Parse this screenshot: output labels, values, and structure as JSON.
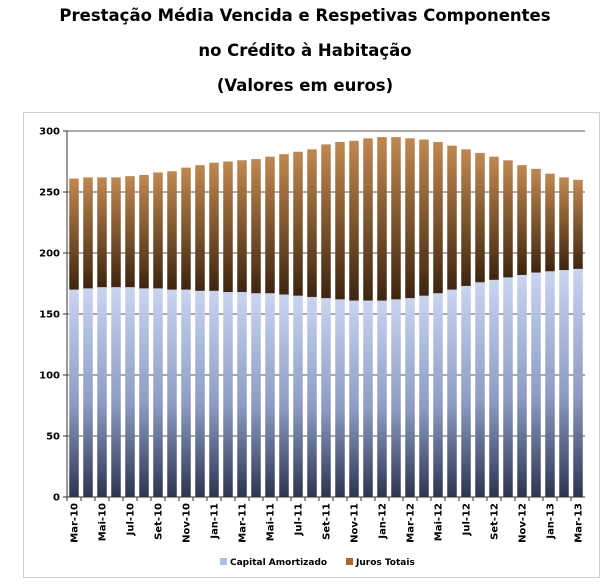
{
  "chart_data": {
    "type": "bar",
    "stacked": true,
    "title_lines": [
      "Prestação Média Vencida e Respetivas Componentes",
      "no Crédito à Habitação",
      "(Valores em euros)"
    ],
    "xlabel": "",
    "ylabel": "",
    "ylim": [
      0,
      300
    ],
    "yticks": [
      0,
      50,
      100,
      150,
      200,
      250,
      300
    ],
    "grid": true,
    "legend_position": "bottom-center",
    "categories": [
      "Mar-10",
      "Apr-10",
      "Mai-10",
      "Jun-10",
      "Jul-10",
      "Ago-10",
      "Set-10",
      "Out-10",
      "Nov-10",
      "Dez-10",
      "Jan-11",
      "Fev-11",
      "Mar-11",
      "Apr-11",
      "Mai-11",
      "Jun-11",
      "Jul-11",
      "Ago-11",
      "Set-11",
      "Out-11",
      "Nov-11",
      "Dez-11",
      "Jan-12",
      "Fev-12",
      "Mar-12",
      "Apr-12",
      "Mai-12",
      "Jun-12",
      "Jul-12",
      "Ago-12",
      "Set-12",
      "Out-12",
      "Nov-12",
      "Dez-12",
      "Jan-13",
      "Fev-13",
      "Mar-13"
    ],
    "visible_tick_labels": [
      "Mar-10",
      "Mai-10",
      "Jul-10",
      "Set-10",
      "Nov-10",
      "Jan-11",
      "Mar-11",
      "Mai-11",
      "Jul-11",
      "Set-11",
      "Nov-11",
      "Jan-12",
      "Mar-12",
      "Mai-12",
      "Jul-12",
      "Set-12",
      "Nov-12",
      "Jan-13",
      "Mar-13"
    ],
    "series": [
      {
        "name": "Capital Amortizado",
        "color": "#aebfe6",
        "values": [
          170,
          171,
          172,
          172,
          172,
          171,
          171,
          170,
          170,
          169,
          169,
          168,
          168,
          167,
          167,
          166,
          165,
          164,
          163,
          162,
          161,
          161,
          161,
          162,
          163,
          165,
          167,
          170,
          173,
          176,
          178,
          180,
          182,
          184,
          185,
          186,
          187
        ]
      },
      {
        "name": "Juros Totais",
        "color": "#a86a30",
        "values": [
          91,
          91,
          90,
          90,
          91,
          93,
          95,
          97,
          100,
          103,
          105,
          107,
          108,
          110,
          112,
          115,
          118,
          121,
          126,
          129,
          131,
          133,
          134,
          133,
          131,
          128,
          124,
          118,
          112,
          106,
          101,
          96,
          90,
          85,
          80,
          76,
          73
        ]
      }
    ]
  }
}
